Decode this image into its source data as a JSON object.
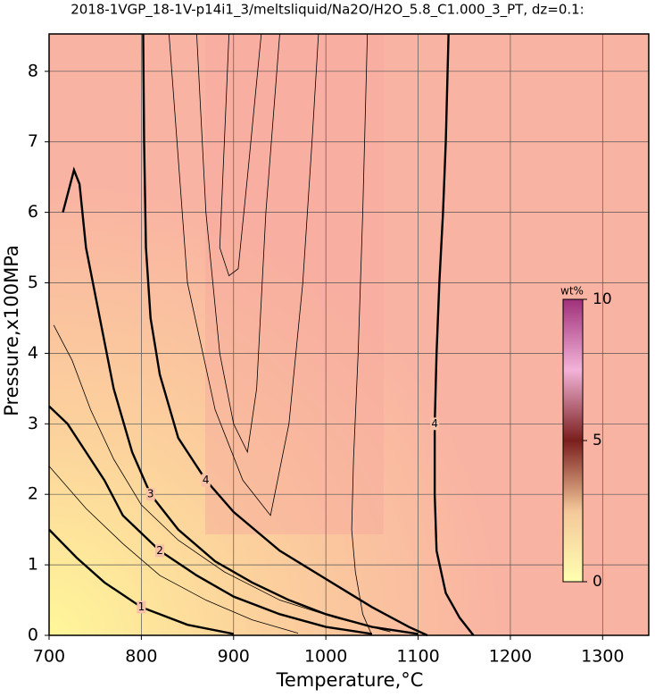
{
  "chart_data": {
    "type": "contour",
    "title": "2018-1VGP_18-1V-p14i1_3/meltsliquid/Na2O/H2O_5.8_C1.000_3_PT, dz=0.1:",
    "x_label": "Temperature,°C",
    "y_label": "Pressure,x100MPa",
    "xlim": [
      700,
      1350
    ],
    "xticks": [
      700,
      800,
      900,
      1000,
      1100,
      1200,
      1300
    ],
    "ylim": [
      0,
      8.53
    ],
    "yticks": [
      0,
      1,
      2,
      3,
      4,
      5,
      6,
      7,
      8
    ],
    "grid": true,
    "colorbar": {
      "label": "wt%",
      "lim": [
        0,
        10
      ],
      "ticks": [
        0,
        5,
        10
      ]
    },
    "contours": [
      {
        "level": 1,
        "labeled": true,
        "x": [
          700,
          730,
          760,
          800,
          850,
          900
        ],
        "y": [
          1.5,
          1.1,
          0.75,
          0.4,
          0.15,
          0.02
        ]
      },
      {
        "level": 2,
        "labeled": true,
        "x": [
          700,
          720,
          740,
          760,
          780,
          820,
          860,
          900,
          950,
          1000,
          1050
        ],
        "y": [
          3.25,
          3.0,
          2.6,
          2.2,
          1.7,
          1.2,
          0.85,
          0.55,
          0.3,
          0.12,
          0.02
        ]
      },
      {
        "level": 3,
        "labeled": true,
        "x": [
          715,
          727,
          733,
          740,
          755,
          770,
          790,
          810,
          840,
          880,
          920,
          960,
          1000,
          1050,
          1100
        ],
        "y": [
          6.0,
          6.6,
          6.4,
          5.5,
          4.5,
          3.5,
          2.6,
          2.0,
          1.5,
          1.05,
          0.75,
          0.5,
          0.3,
          0.12,
          0.02
        ]
      },
      {
        "level": 4,
        "labeled": true,
        "x": [
          802,
          803,
          805,
          810,
          820,
          840,
          870,
          900,
          950,
          1000,
          1050,
          1090,
          1110
        ],
        "y": [
          8.53,
          7,
          5.5,
          4.5,
          3.7,
          2.8,
          2.2,
          1.75,
          1.2,
          0.8,
          0.4,
          0.12,
          0.0
        ]
      },
      {
        "level": 4,
        "labeled": true,
        "x": [
          1133,
          1130,
          1127,
          1123,
          1120,
          1118,
          1118,
          1120,
          1130,
          1145,
          1160
        ],
        "y": [
          8.53,
          7,
          6,
          5,
          4,
          3,
          2,
          1.2,
          0.6,
          0.25,
          0
        ]
      },
      {
        "level": 1.5,
        "labeled": false,
        "x": [
          700,
          740,
          780,
          820,
          870,
          920,
          970
        ],
        "y": [
          2.4,
          1.8,
          1.3,
          0.85,
          0.5,
          0.22,
          0.03
        ]
      },
      {
        "level": 2.5,
        "labeled": false,
        "x": [
          705,
          725,
          745,
          770,
          800,
          840,
          890,
          950,
          1010,
          1070
        ],
        "y": [
          4.4,
          3.9,
          3.2,
          2.5,
          1.85,
          1.35,
          0.9,
          0.5,
          0.25,
          0.05
        ]
      },
      {
        "level": 4.3,
        "labeled": false,
        "x": [
          895,
          890,
          885,
          895,
          905,
          915,
          930
        ],
        "y": [
          8.53,
          7,
          5.5,
          5.1,
          5.2,
          6.5,
          8.53
        ]
      },
      {
        "level": 4.2,
        "labeled": false,
        "x": [
          860,
          870,
          885,
          900,
          915,
          925,
          935,
          950
        ],
        "y": [
          8.53,
          6,
          4,
          3.0,
          2.6,
          3.5,
          6,
          8.53
        ]
      },
      {
        "level": 4.1,
        "labeled": false,
        "x": [
          830,
          850,
          880,
          910,
          940,
          960,
          975,
          985,
          992
        ],
        "y": [
          8.53,
          5,
          3.2,
          2.2,
          1.7,
          3,
          5,
          7,
          8.53
        ]
      },
      {
        "level": 4.05,
        "labeled": false,
        "x": [
          1045,
          1040,
          1035,
          1030,
          1028,
          1032,
          1040,
          1050
        ],
        "y": [
          8.53,
          6,
          4,
          2.5,
          1.5,
          0.9,
          0.3,
          0.0
        ]
      }
    ]
  }
}
